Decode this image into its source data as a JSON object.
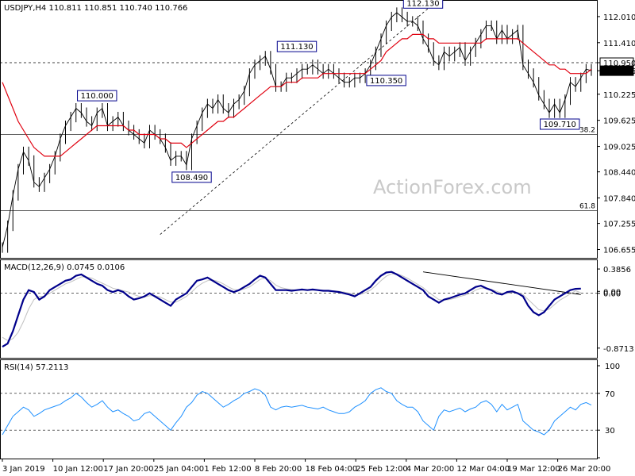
{
  "chart_data": {
    "type": "line",
    "watermark": "ActionForex.com",
    "price_panel": {
      "title": "USDJPY,H4  110.811 110.851 110.740 110.766",
      "ylim": [
        106.5,
        112.3
      ],
      "y_ticks": [
        "112.010",
        "111.410",
        "110.950",
        "110.766",
        "110.225",
        "109.625",
        "109.025",
        "108.440",
        "107.840",
        "107.255",
        "106.655"
      ],
      "price_labels_y": [
        112.01,
        111.41,
        110.95,
        110.766,
        110.225,
        109.625,
        109.025,
        108.44,
        107.84,
        107.255,
        106.655
      ],
      "ref_lines": [
        {
          "label": "38.2",
          "value": 109.3
        },
        {
          "label": "61.8",
          "value": 107.55
        },
        {
          "label": "",
          "value": 110.95
        }
      ],
      "annotations": [
        {
          "text": "110.000",
          "x": 18,
          "y": 110.0
        },
        {
          "text": "108.490",
          "x": 36,
          "y": 108.49
        },
        {
          "text": "111.130",
          "x": 56,
          "y": 111.13
        },
        {
          "text": "110.350",
          "x": 73,
          "y": 110.35
        },
        {
          "text": "112.130",
          "x": 80,
          "y": 112.13
        },
        {
          "text": "109.710",
          "x": 106,
          "y": 109.71
        }
      ],
      "trendline": {
        "x1": 30,
        "y1": 107.0,
        "x2": 81,
        "y2": 112.2
      },
      "series": [
        {
          "name": "",
          "color": "#000000",
          "values": [
            106.7,
            107.2,
            107.9,
            108.5,
            108.9,
            108.7,
            108.2,
            108.1,
            108.3,
            108.5,
            108.8,
            109.2,
            109.5,
            109.7,
            109.9,
            109.8,
            109.6,
            109.5,
            109.8,
            109.9,
            109.5,
            109.6,
            109.7,
            109.5,
            109.4,
            109.3,
            109.2,
            109.1,
            109.4,
            109.3,
            109.2,
            109.0,
            108.7,
            108.8,
            108.8,
            108.6,
            109.2,
            109.5,
            109.8,
            110.0,
            109.9,
            110.1,
            109.9,
            109.8,
            110.0,
            110.1,
            110.3,
            110.7,
            110.9,
            111.0,
            111.1,
            110.8,
            110.4,
            110.4,
            110.6,
            110.6,
            110.7,
            110.8,
            110.8,
            110.9,
            110.8,
            110.7,
            110.8,
            110.7,
            110.6,
            110.5,
            110.5,
            110.6,
            110.6,
            110.7,
            110.9,
            111.2,
            111.5,
            111.8,
            112.0,
            112.1,
            112.0,
            111.9,
            111.9,
            111.8,
            111.5,
            111.3,
            111.0,
            110.9,
            111.2,
            111.1,
            111.2,
            111.3,
            111.0,
            111.2,
            111.4,
            111.6,
            111.8,
            111.8,
            111.5,
            111.7,
            111.5,
            111.6,
            111.7,
            110.9,
            110.7,
            110.5,
            110.2,
            110.0,
            109.8,
            110.0,
            109.8,
            110.1,
            110.5,
            110.4,
            110.6,
            110.8,
            110.766
          ]
        },
        {
          "name": "",
          "color": "#e0000f",
          "values": [
            110.5,
            110.2,
            109.9,
            109.6,
            109.4,
            109.2,
            109.0,
            108.9,
            108.8,
            108.8,
            108.8,
            108.8,
            108.9,
            109.0,
            109.1,
            109.2,
            109.3,
            109.4,
            109.5,
            109.5,
            109.5,
            109.5,
            109.5,
            109.5,
            109.4,
            109.4,
            109.3,
            109.3,
            109.3,
            109.3,
            109.2,
            109.2,
            109.1,
            109.1,
            109.1,
            109.0,
            109.1,
            109.2,
            109.3,
            109.4,
            109.5,
            109.6,
            109.6,
            109.7,
            109.7,
            109.8,
            109.9,
            110.0,
            110.1,
            110.2,
            110.3,
            110.4,
            110.4,
            110.4,
            110.5,
            110.5,
            110.5,
            110.6,
            110.6,
            110.6,
            110.6,
            110.7,
            110.7,
            110.7,
            110.7,
            110.7,
            110.7,
            110.7,
            110.7,
            110.7,
            110.8,
            110.9,
            111.0,
            111.2,
            111.3,
            111.4,
            111.5,
            111.5,
            111.6,
            111.6,
            111.6,
            111.5,
            111.5,
            111.4,
            111.4,
            111.4,
            111.4,
            111.4,
            111.4,
            111.4,
            111.4,
            111.4,
            111.5,
            111.5,
            111.5,
            111.5,
            111.5,
            111.5,
            111.5,
            111.4,
            111.3,
            111.2,
            111.1,
            111.0,
            110.9,
            110.9,
            110.8,
            110.8,
            110.7,
            110.7,
            110.7,
            110.7,
            110.8
          ]
        }
      ]
    },
    "macd_panel": {
      "title": "MACD(12,26,9) 0.0745 0.0106",
      "ylim": [
        -1.0,
        0.5
      ],
      "y_ticks": [
        "0.3856",
        "0.00",
        "0.00",
        "-0.8713"
      ],
      "tick_values": [
        0.3856,
        0.03,
        0.0,
        -0.8713
      ],
      "trendline": {
        "x1": 80,
        "y1": 0.34,
        "x2": 110,
        "y2": -0.02
      },
      "series": [
        {
          "name": "",
          "color": "#00008b",
          "values": [
            -0.85,
            -0.8,
            -0.6,
            -0.35,
            -0.1,
            0.05,
            0.02,
            -0.1,
            -0.05,
            0.05,
            0.1,
            0.15,
            0.2,
            0.22,
            0.28,
            0.3,
            0.25,
            0.2,
            0.15,
            0.12,
            0.05,
            0.02,
            0.05,
            0.02,
            -0.05,
            -0.1,
            -0.08,
            -0.05,
            0.0,
            -0.05,
            -0.1,
            -0.15,
            -0.2,
            -0.1,
            -0.05,
            0.0,
            0.1,
            0.2,
            0.22,
            0.25,
            0.2,
            0.15,
            0.1,
            0.05,
            0.02,
            0.05,
            0.1,
            0.15,
            0.22,
            0.28,
            0.25,
            0.15,
            0.05,
            0.05,
            0.05,
            0.04,
            0.05,
            0.06,
            0.05,
            0.06,
            0.05,
            0.04,
            0.04,
            0.03,
            0.02,
            0.0,
            -0.02,
            -0.05,
            0.0,
            0.05,
            0.1,
            0.2,
            0.28,
            0.33,
            0.34,
            0.3,
            0.25,
            0.2,
            0.15,
            0.1,
            0.05,
            -0.05,
            -0.1,
            -0.15,
            -0.1,
            -0.08,
            -0.05,
            -0.02,
            0.0,
            0.05,
            0.1,
            0.12,
            0.08,
            0.05,
            0.0,
            -0.02,
            0.02,
            0.03,
            0.0,
            -0.05,
            -0.2,
            -0.3,
            -0.35,
            -0.3,
            -0.2,
            -0.1,
            -0.05,
            0.0,
            0.05,
            0.07,
            0.0745
          ]
        },
        {
          "name": "",
          "color": "#c0c0c0",
          "values": [
            -0.7,
            -0.75,
            -0.72,
            -0.62,
            -0.45,
            -0.25,
            -0.1,
            -0.05,
            -0.05,
            0.0,
            0.05,
            0.1,
            0.15,
            0.18,
            0.22,
            0.26,
            0.26,
            0.24,
            0.2,
            0.16,
            0.12,
            0.08,
            0.06,
            0.04,
            0.02,
            -0.02,
            -0.05,
            -0.06,
            -0.04,
            -0.04,
            -0.06,
            -0.1,
            -0.14,
            -0.14,
            -0.1,
            -0.05,
            0.02,
            0.1,
            0.16,
            0.2,
            0.21,
            0.19,
            0.15,
            0.1,
            0.06,
            0.05,
            0.07,
            0.1,
            0.16,
            0.22,
            0.24,
            0.2,
            0.13,
            0.09,
            0.07,
            0.06,
            0.05,
            0.05,
            0.05,
            0.05,
            0.05,
            0.05,
            0.04,
            0.04,
            0.03,
            0.02,
            0.0,
            -0.02,
            -0.02,
            0.01,
            0.05,
            0.12,
            0.2,
            0.27,
            0.31,
            0.31,
            0.28,
            0.24,
            0.19,
            0.14,
            0.09,
            0.02,
            -0.04,
            -0.1,
            -0.11,
            -0.1,
            -0.08,
            -0.05,
            -0.03,
            0.0,
            0.05,
            0.08,
            0.08,
            0.06,
            0.03,
            0.0,
            0.0,
            0.01,
            0.01,
            -0.02,
            -0.1,
            -0.18,
            -0.26,
            -0.28,
            -0.25,
            -0.18,
            -0.11,
            -0.06,
            -0.01,
            0.04,
            0.0106
          ]
        }
      ]
    },
    "rsi_panel": {
      "title": "RSI(14) 57.2113",
      "ylim": [
        0,
        100
      ],
      "y_ticks": [
        "100",
        "70",
        "30",
        "0"
      ],
      "tick_values": [
        100,
        70,
        30,
        0
      ],
      "levels": [
        70,
        30
      ],
      "series": [
        {
          "name": "",
          "color": "#1e90ff",
          "values": [
            25,
            35,
            45,
            50,
            55,
            52,
            45,
            48,
            52,
            54,
            56,
            58,
            62,
            65,
            70,
            66,
            60,
            55,
            58,
            62,
            55,
            50,
            52,
            48,
            45,
            40,
            42,
            48,
            50,
            45,
            40,
            35,
            30,
            38,
            45,
            55,
            60,
            68,
            72,
            70,
            65,
            60,
            55,
            58,
            62,
            65,
            70,
            72,
            75,
            73,
            68,
            55,
            52,
            55,
            56,
            55,
            56,
            57,
            55,
            54,
            53,
            55,
            52,
            50,
            48,
            48,
            50,
            55,
            58,
            62,
            70,
            74,
            76,
            72,
            70,
            62,
            58,
            55,
            55,
            50,
            40,
            35,
            30,
            45,
            52,
            50,
            52,
            54,
            50,
            53,
            55,
            60,
            62,
            58,
            50,
            58,
            52,
            55,
            58,
            40,
            35,
            30,
            28,
            25,
            30,
            40,
            45,
            50,
            55,
            52,
            58,
            60,
            57.21
          ]
        }
      ]
    },
    "x_labels": [
      "3 Jan 2019",
      "10 Jan 12:00",
      "17 Jan 20:00",
      "25 Jan 04:00",
      "1 Feb 12:00",
      "8 Feb 20:00",
      "18 Feb 04:00",
      "25 Feb 12:00",
      "4 Mar 20:00",
      "12 Mar 04:00",
      "19 Mar 12:00",
      "26 Mar 20:00"
    ]
  }
}
